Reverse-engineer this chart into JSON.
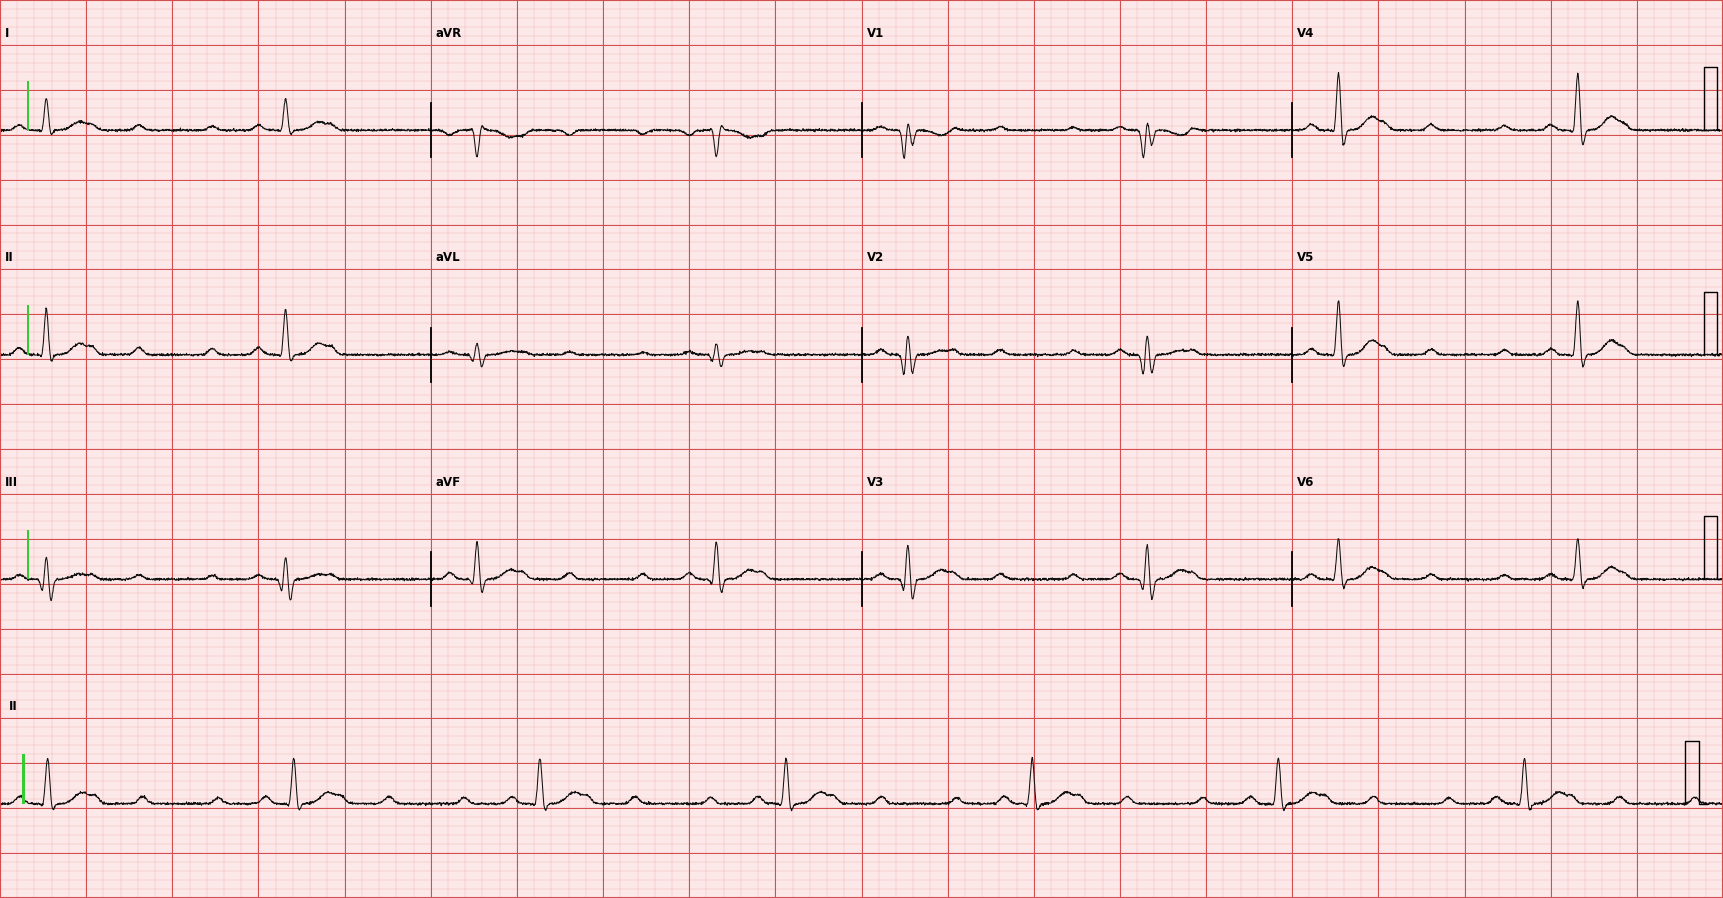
{
  "bg_color": "#fce8e8",
  "grid_minor_color": "#f0b0b0",
  "grid_major_color": "#d45050",
  "ecg_color": "#111111",
  "green_color": "#33cc33",
  "fig_width": 17.23,
  "fig_height": 8.98,
  "dpi": 100,
  "lead_layout": [
    [
      "I",
      "aVR",
      "V1",
      "V4"
    ],
    [
      "II",
      "aVL",
      "V2",
      "V5"
    ],
    [
      "III",
      "aVF",
      "V3",
      "V6"
    ]
  ],
  "long_lead": "II",
  "lead_params": {
    "I": {
      "r": 0.45,
      "q": -0.05,
      "s": -0.08,
      "p": 0.07,
      "t": 0.12,
      "base": 0.0
    },
    "II": {
      "r": 0.65,
      "q": -0.07,
      "s": -0.12,
      "p": 0.1,
      "t": 0.16,
      "base": 0.0
    },
    "III": {
      "r": 0.35,
      "q": -0.22,
      "s": -0.32,
      "p": 0.06,
      "t": 0.07,
      "base": 0.0
    },
    "aVR": {
      "r": -0.38,
      "q": 0.05,
      "s": 0.08,
      "p": -0.07,
      "t": -0.1,
      "base": 0.0
    },
    "aVL": {
      "r": 0.18,
      "q": -0.12,
      "s": -0.18,
      "p": 0.04,
      "t": 0.05,
      "base": 0.0
    },
    "aVF": {
      "r": 0.55,
      "q": -0.13,
      "s": -0.22,
      "p": 0.09,
      "t": 0.13,
      "base": 0.0
    },
    "V1": {
      "r": 0.15,
      "q": -0.42,
      "s": -0.22,
      "p": 0.05,
      "t": -0.07,
      "base": 0.0
    },
    "V2": {
      "r": 0.32,
      "q": -0.33,
      "s": -0.28,
      "p": 0.07,
      "t": 0.06,
      "base": 0.0
    },
    "V3": {
      "r": 0.52,
      "q": -0.23,
      "s": -0.32,
      "p": 0.08,
      "t": 0.13,
      "base": 0.0
    },
    "V4": {
      "r": 0.82,
      "q": -0.09,
      "s": -0.26,
      "p": 0.08,
      "t": 0.19,
      "base": 0.0
    },
    "V5": {
      "r": 0.78,
      "q": -0.07,
      "s": -0.21,
      "p": 0.08,
      "t": 0.2,
      "base": 0.0
    },
    "V6": {
      "r": 0.58,
      "q": -0.05,
      "s": -0.15,
      "p": 0.07,
      "t": 0.17,
      "base": 0.0
    }
  }
}
